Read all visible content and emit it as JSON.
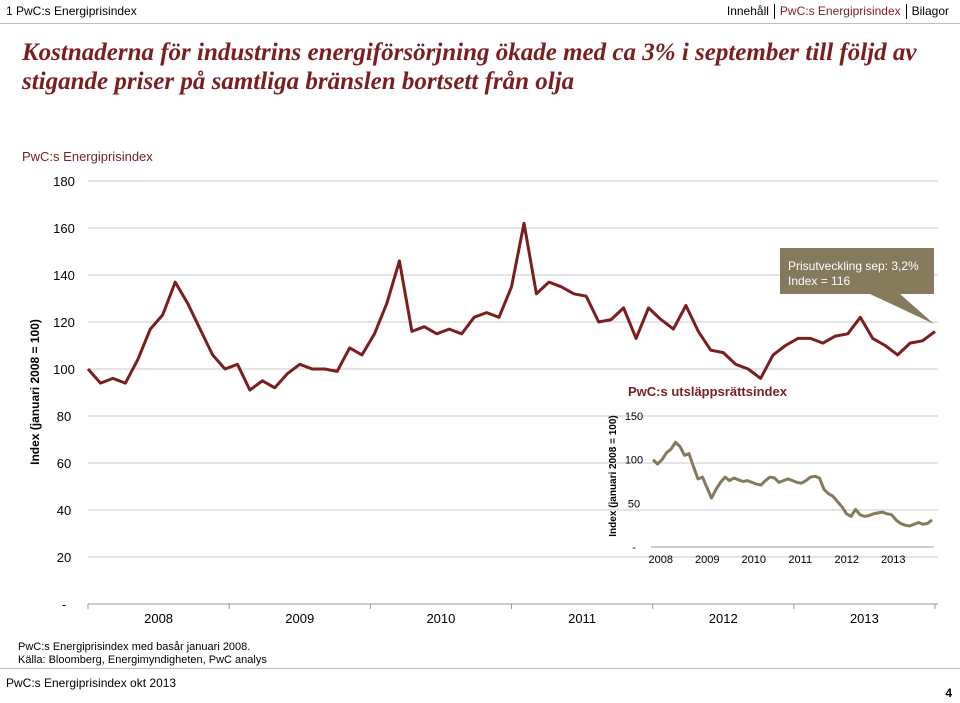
{
  "header": {
    "doc_title": "1 PwC:s Energiprisindex",
    "nav": [
      {
        "label": "Innehåll",
        "active": false
      },
      {
        "label": "PwC:s Energiprisindex",
        "active": true
      },
      {
        "label": "Bilagor",
        "active": false
      }
    ]
  },
  "headline": "Kostnaderna för industrins energiförsörjning ökade med ca 3% i september till följd av stigande priser på samtliga bränslen bortsett från olja",
  "footnotes": {
    "note1": "PwC:s Energiprisindex med basår januari 2008.",
    "note2": "Källa: Bloomberg, Energimyndigheten, PwC analys"
  },
  "footer": {
    "text": "PwC:s Energiprisindex okt 2013",
    "page_number": "4"
  },
  "colors": {
    "main_line": "#7a1e1e",
    "inset_line": "#857b5c",
    "callout_bg": "#857b5c",
    "grid": "#c8c8c8",
    "brand": "#7a1e1e"
  },
  "chart_data": [
    {
      "type": "line",
      "title": "PwC:s Energiprisindex",
      "ylabel": "Index (januari 2008 = 100)",
      "ylim": [
        0,
        180
      ],
      "y_ticks": [
        "-",
        "20",
        "40",
        "60",
        "80",
        "100",
        "120",
        "140",
        "160",
        "180"
      ],
      "x_ticks": [
        "2008",
        "2009",
        "2010",
        "2011",
        "2012",
        "2013"
      ],
      "grid": true,
      "annotation": {
        "line1": "Prisutveckling sep: 3,2%",
        "line2": "Index = 116"
      },
      "series": [
        {
          "name": "PwC:s Energiprisindex",
          "start": "2008-01",
          "values": [
            100,
            94,
            96,
            94,
            104,
            117,
            123,
            137,
            128,
            117,
            106,
            100,
            102,
            91,
            95,
            92,
            98,
            102,
            100,
            100,
            99,
            109,
            106,
            115,
            128,
            146,
            116,
            118,
            115,
            117,
            115,
            122,
            124,
            122,
            135,
            162,
            132,
            137,
            135,
            132,
            131,
            120,
            121,
            126,
            113,
            126,
            121,
            117,
            127,
            116,
            108,
            107,
            102,
            100,
            96,
            106,
            110,
            113,
            113,
            111,
            114,
            115,
            122,
            113,
            110,
            106,
            111,
            112,
            116
          ]
        }
      ]
    },
    {
      "type": "line",
      "title": "PwC:s utsläppsrättsindex",
      "ylabel": "Index (januari 2008 = 100)",
      "ylim": [
        0,
        150
      ],
      "y_ticks": [
        "-",
        "50",
        "100",
        "150"
      ],
      "x_ticks": [
        "2008",
        "2009",
        "2010",
        "2011",
        "2012",
        "2013"
      ],
      "series": [
        {
          "name": "PwC:s utsläppsrättsindex",
          "start": "2008-01",
          "values": [
            100,
            95,
            100,
            108,
            112,
            120,
            115,
            105,
            107,
            92,
            78,
            80,
            68,
            56,
            66,
            74,
            80,
            76,
            79,
            77,
            75,
            76,
            74,
            72,
            71,
            76,
            80,
            79,
            74,
            76,
            78,
            76,
            74,
            73,
            76,
            80,
            81,
            79,
            66,
            61,
            58,
            52,
            46,
            38,
            35,
            43,
            37,
            35,
            36,
            38,
            39,
            40,
            38,
            37,
            31,
            27,
            25,
            24,
            26,
            28,
            26,
            27,
            31
          ]
        }
      ]
    }
  ]
}
